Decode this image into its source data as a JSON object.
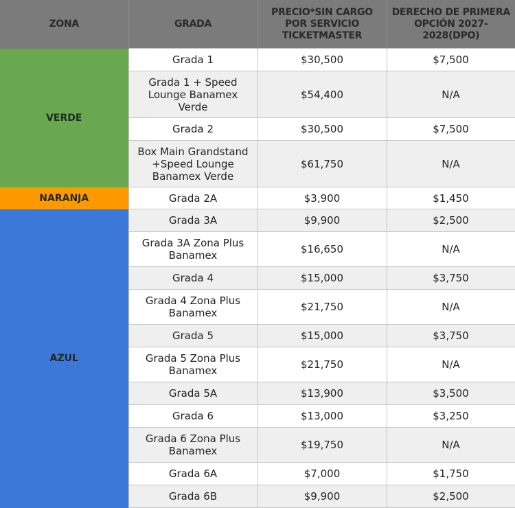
{
  "table": {
    "headers": [
      "ZONA",
      "GRADA",
      "PRECIO*SIN CARGO POR SERVICIO TICKETMASTER",
      "DERECHO DE PRIMERA OPCIÓN 2027-2028(DPO)"
    ],
    "zones": [
      {
        "name": "VERDE",
        "color": "#6aa84f",
        "rows": [
          {
            "grada": "Grada 1",
            "precio": "$30,500",
            "dpo": "$7,500"
          },
          {
            "grada": "Grada 1 + Speed Lounge Banamex Verde",
            "precio": "$54,400",
            "dpo": "N/A"
          },
          {
            "grada": "Grada 2",
            "precio": "$30,500",
            "dpo": "$7,500"
          },
          {
            "grada": "Box Main Grandstand +Speed Lounge Banamex Verde",
            "precio": "$61,750",
            "dpo": "N/A"
          }
        ]
      },
      {
        "name": "NARANJA",
        "color": "#ff9900",
        "rows": [
          {
            "grada": "Grada 2A",
            "precio": "$3,900",
            "dpo": "$1,450"
          }
        ]
      },
      {
        "name": "AZUL",
        "color": "#3c78d8",
        "rows": [
          {
            "grada": "Grada 3A",
            "precio": "$9,900",
            "dpo": "$2,500"
          },
          {
            "grada": "Grada 3A Zona Plus Banamex",
            "precio": "$16,650",
            "dpo": "N/A"
          },
          {
            "grada": "Grada 4",
            "precio": "$15,000",
            "dpo": "$3,750"
          },
          {
            "grada": "Grada 4 Zona Plus Banamex",
            "precio": "$21,750",
            "dpo": "N/A"
          },
          {
            "grada": "Grada 5",
            "precio": "$15,000",
            "dpo": "$3,750"
          },
          {
            "grada": "Grada 5 Zona Plus Banamex",
            "precio": "$21,750",
            "dpo": "N/A"
          },
          {
            "grada": "Grada 5A",
            "precio": "$13,900",
            "dpo": "$3,500"
          },
          {
            "grada": "Grada 6",
            "precio": "$13,000",
            "dpo": "$3,250"
          },
          {
            "grada": "Grada 6 Zona Plus Banamex",
            "precio": "$19,750",
            "dpo": "N/A"
          },
          {
            "grada": "Grada 6A",
            "precio": "$7,000",
            "dpo": "$1,750"
          },
          {
            "grada": "Grada 6B",
            "precio": "$9,900",
            "dpo": "$2,500"
          }
        ]
      }
    ]
  }
}
